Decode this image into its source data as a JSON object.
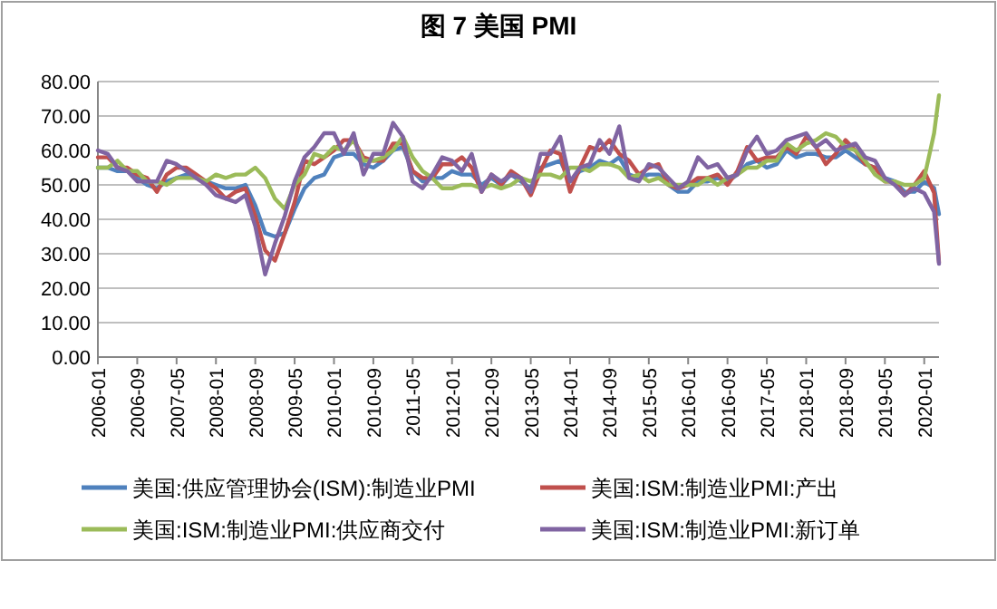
{
  "chart_data": {
    "type": "line",
    "title": "图 7  美国 PMI",
    "x": [
      "2006-01",
      "2006-03",
      "2006-05",
      "2006-07",
      "2006-09",
      "2006-11",
      "2007-01",
      "2007-03",
      "2007-05",
      "2007-07",
      "2007-09",
      "2007-11",
      "2008-01",
      "2008-03",
      "2008-05",
      "2008-07",
      "2008-09",
      "2008-11",
      "2009-01",
      "2009-03",
      "2009-05",
      "2009-07",
      "2009-09",
      "2009-11",
      "2010-01",
      "2010-03",
      "2010-05",
      "2010-07",
      "2010-09",
      "2010-11",
      "2011-01",
      "2011-03",
      "2011-05",
      "2011-07",
      "2011-09",
      "2011-11",
      "2012-01",
      "2012-03",
      "2012-05",
      "2012-07",
      "2012-09",
      "2012-11",
      "2013-01",
      "2013-03",
      "2013-05",
      "2013-07",
      "2013-09",
      "2013-11",
      "2014-01",
      "2014-03",
      "2014-05",
      "2014-07",
      "2014-09",
      "2014-11",
      "2015-01",
      "2015-03",
      "2015-05",
      "2015-07",
      "2015-09",
      "2015-11",
      "2016-01",
      "2016-03",
      "2016-05",
      "2016-07",
      "2016-09",
      "2016-11",
      "2017-01",
      "2017-03",
      "2017-05",
      "2017-07",
      "2017-09",
      "2017-11",
      "2018-01",
      "2018-03",
      "2018-05",
      "2018-07",
      "2018-09",
      "2018-11",
      "2019-01",
      "2019-03",
      "2019-05",
      "2019-07",
      "2019-09",
      "2019-11",
      "2020-01",
      "2020-03",
      "2020-04"
    ],
    "series": [
      {
        "name": "美国:供应管理协会(ISM):制造业PMI",
        "color": "#4f81bd",
        "values": [
          55,
          55,
          54,
          54,
          52,
          50,
          49,
          51,
          52,
          53,
          52,
          51,
          50,
          49,
          49,
          50,
          44,
          36,
          35,
          36,
          43,
          49,
          52,
          53,
          58,
          59,
          59,
          56,
          55,
          57,
          60,
          61,
          54,
          51,
          52,
          52,
          54,
          53,
          53,
          50,
          52,
          50,
          53,
          51,
          49,
          55,
          56,
          57,
          51,
          54,
          55,
          57,
          56,
          58,
          53,
          52,
          53,
          53,
          50,
          48,
          48,
          51,
          51,
          52,
          51,
          53,
          56,
          57,
          55,
          56,
          60,
          58,
          59,
          59,
          58,
          58,
          60,
          58,
          56,
          55,
          52,
          51,
          48,
          48,
          50.9,
          49.1,
          41.5
        ]
      },
      {
        "name": "美国:ISM:制造业PMI:产出",
        "color": "#c0504d",
        "values": [
          58,
          58,
          55,
          55,
          53,
          52,
          48,
          53,
          55,
          55,
          53,
          51,
          49,
          46,
          48,
          49,
          41,
          31,
          28,
          36,
          45,
          57,
          56,
          58,
          60,
          63,
          63,
          58,
          57,
          57,
          62,
          62,
          54,
          52,
          52,
          56,
          56,
          58,
          55,
          48,
          53,
          50,
          54,
          52,
          47,
          54,
          60,
          59,
          48,
          55,
          61,
          60,
          63,
          59,
          57,
          53,
          55,
          56,
          50,
          49,
          50,
          52,
          52,
          53,
          50,
          54,
          61,
          57,
          58,
          58,
          61,
          59,
          64,
          61,
          56,
          59,
          63,
          60,
          56,
          55,
          51,
          51,
          47,
          50,
          54,
          47.7,
          27.5
        ]
      },
      {
        "name": "美国:ISM:制造业PMI:供应商交付",
        "color": "#9bbb59",
        "values": [
          55,
          55,
          57,
          54,
          54,
          51,
          51,
          50,
          52,
          52,
          52,
          51,
          53,
          52,
          53,
          53,
          55,
          52,
          46,
          43,
          50,
          53,
          59,
          58,
          61,
          60,
          63,
          57,
          57,
          58,
          60,
          64,
          58,
          54,
          52,
          49,
          49,
          50,
          50,
          49,
          50,
          49,
          50,
          52,
          51,
          53,
          53,
          52,
          55,
          55,
          54,
          56,
          56,
          55,
          52,
          53,
          51,
          52,
          50,
          50,
          50,
          50,
          52,
          50,
          52,
          53,
          55,
          55,
          57,
          57,
          62,
          60,
          62,
          63,
          65,
          64,
          61,
          60,
          57,
          53,
          51,
          51,
          50,
          50,
          52,
          65,
          76
        ]
      },
      {
        "name": "美国:ISM:制造业PMI:新订单",
        "color": "#8064a2",
        "values": [
          60,
          59,
          55,
          54,
          51,
          51,
          51,
          57,
          56,
          54,
          52,
          50,
          47,
          46,
          45,
          47,
          38,
          24,
          33,
          41,
          51,
          58,
          61,
          65,
          65,
          59,
          65,
          53,
          59,
          59,
          68,
          64,
          51,
          49,
          53,
          58,
          57,
          54,
          59,
          48,
          53,
          51,
          53,
          52,
          48,
          59,
          59,
          64,
          51,
          55,
          56,
          63,
          59,
          67,
          52,
          51,
          56,
          55,
          52,
          49,
          51,
          58,
          55,
          56,
          52,
          53,
          60,
          64,
          59,
          60,
          63,
          64,
          65,
          61,
          63,
          60,
          61,
          62,
          58,
          57,
          52,
          50,
          47,
          49,
          47.6,
          42.2,
          27.1
        ]
      }
    ],
    "xlim": [
      "2006-01",
      "2020-04"
    ],
    "xticks": [
      "2006-01",
      "2006-09",
      "2007-05",
      "2008-01",
      "2008-09",
      "2009-05",
      "2010-01",
      "2010-09",
      "2011-05",
      "2012-01",
      "2012-09",
      "2013-05",
      "2014-01",
      "2014-09",
      "2015-05",
      "2016-01",
      "2016-09",
      "2017-05",
      "2018-01",
      "2018-09",
      "2019-05",
      "2020-01"
    ],
    "ylim": [
      0,
      80
    ],
    "yticks": [
      {
        "value": 0,
        "label": "0.00"
      },
      {
        "value": 10,
        "label": "10.00"
      },
      {
        "value": 20,
        "label": "20.00"
      },
      {
        "value": 30,
        "label": "30.00"
      },
      {
        "value": 40,
        "label": "40.00"
      },
      {
        "value": 50,
        "label": "50.00"
      },
      {
        "value": 60,
        "label": "60.00"
      },
      {
        "value": 70,
        "label": "70.00"
      },
      {
        "value": 80,
        "label": "80.00"
      }
    ],
    "grid": "y",
    "legend": "bottom"
  }
}
